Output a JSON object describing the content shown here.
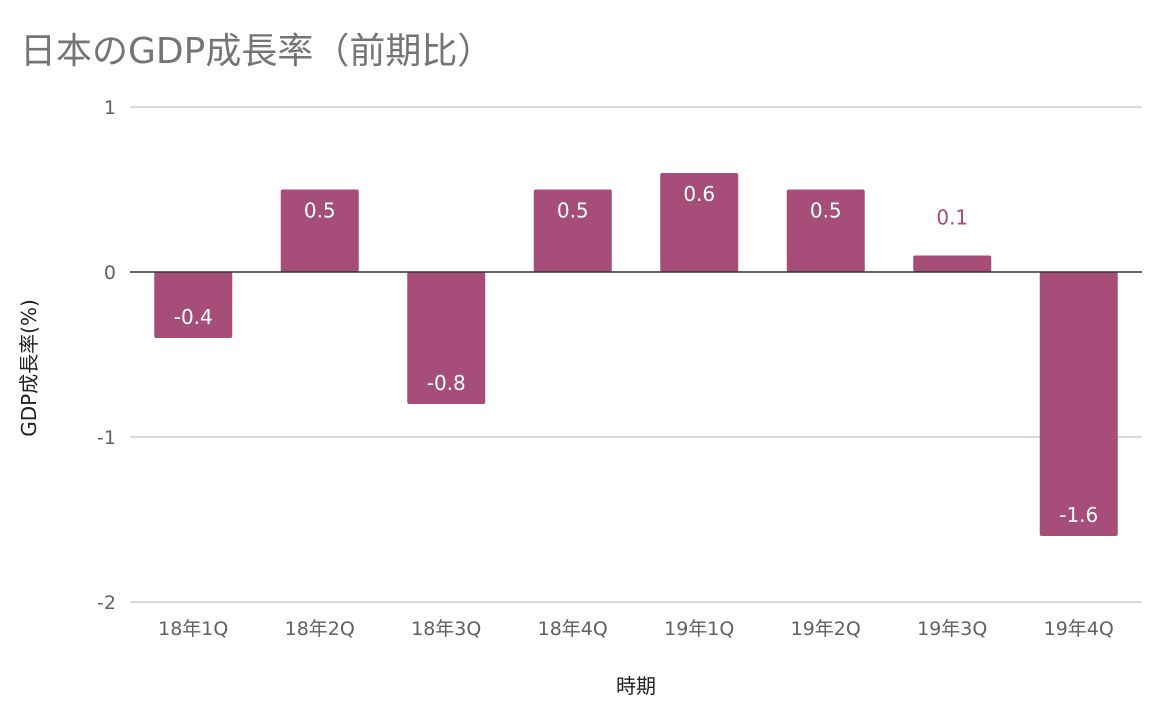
{
  "chart_data": {
    "type": "bar",
    "title": "日本のGDP成長率（前期比）",
    "xlabel": "時期",
    "ylabel": "GDP成長率(%)",
    "categories": [
      "18年1Q",
      "18年2Q",
      "18年3Q",
      "18年4Q",
      "19年1Q",
      "19年2Q",
      "19年3Q",
      "19年4Q"
    ],
    "series": [
      {
        "values": [
          -0.4,
          0.5,
          -0.8,
          0.5,
          0.6,
          0.5,
          0.1,
          -1.6
        ]
      }
    ],
    "data_labels": [
      "-0.4",
      "0.5",
      "-0.8",
      "0.5",
      "0.6",
      "0.5",
      "0.1",
      "-1.6"
    ],
    "ylim": [
      -2,
      1
    ],
    "yticks": [
      1,
      0,
      -1,
      -2
    ],
    "ytick_labels": [
      "1",
      "0",
      "-1",
      "-2"
    ],
    "grid": true,
    "legend": "none"
  },
  "colors": {
    "bar": "#a64d79",
    "label_inside": "#ffffff",
    "label_outside": "#a64d79",
    "grid": "#cccccc",
    "zero_line": "#333333",
    "tick_text": "#616161",
    "title": "#757575"
  }
}
